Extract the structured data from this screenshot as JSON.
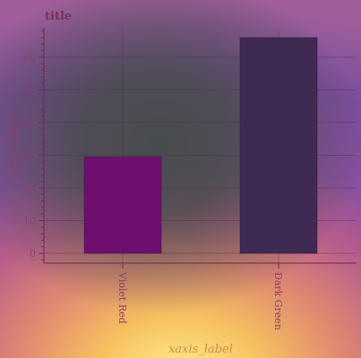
{
  "chart_data": {
    "type": "bar",
    "title": "title",
    "xlabel": "xaxis_label",
    "ylabel": "yaxis_label",
    "categories": [
      "Violet Red",
      "Dark Green"
    ],
    "values": [
      29.5,
      66
    ],
    "colors": [
      "#6e0f70",
      "#3e2a52"
    ],
    "ylim": [
      -3,
      69
    ],
    "yticks": [
      0,
      10,
      20,
      30,
      40,
      50,
      60
    ],
    "grid": true,
    "legend": "none"
  }
}
